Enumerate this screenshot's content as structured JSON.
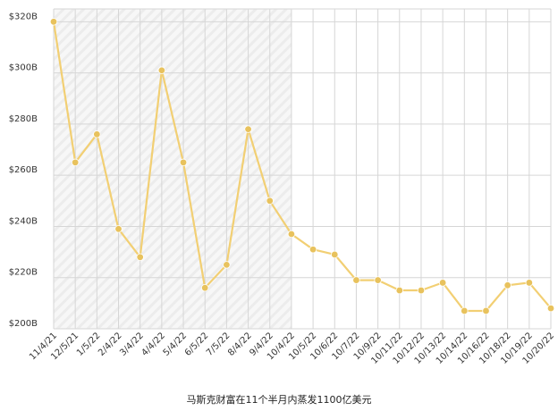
{
  "caption": "马斯克财富在11个半月内蒸发1100亿美元",
  "colors": {
    "line": "#f2cf73",
    "point": "#e8c25d",
    "grid": "#d6d6d6",
    "axis_text": "#333333",
    "shade_stripe": "#ececec"
  },
  "chart_data": {
    "type": "line",
    "categories": [
      "11/4/21",
      "12/5/21",
      "1/5/22",
      "2/4/22",
      "3/4/22",
      "4/4/22",
      "5/4/22",
      "6/5/22",
      "7/5/22",
      "8/4/22",
      "9/4/22",
      "10/4/22",
      "10/5/22",
      "10/6/22",
      "10/7/22",
      "10/9/22",
      "10/11/22",
      "10/12/22",
      "10/13/22",
      "10/14/22",
      "10/16/22",
      "10/18/22",
      "10/19/22",
      "10/20/22"
    ],
    "series": [
      {
        "values": [
          320,
          265,
          276,
          239,
          228,
          301,
          265,
          216,
          225,
          278,
          250,
          237,
          231,
          229,
          219,
          219,
          215,
          215,
          218,
          207,
          207,
          217,
          218,
          208
        ]
      }
    ],
    "y_ticks": [
      "$200B",
      "$220B",
      "$240B",
      "$260B",
      "$280B",
      "$300B",
      "$320B"
    ],
    "y_tick_values": [
      200,
      220,
      240,
      260,
      280,
      300,
      320
    ],
    "ylim": [
      200,
      325
    ],
    "grid": true,
    "shaded_range": [
      "11/4/21",
      "10/4/22"
    ]
  }
}
